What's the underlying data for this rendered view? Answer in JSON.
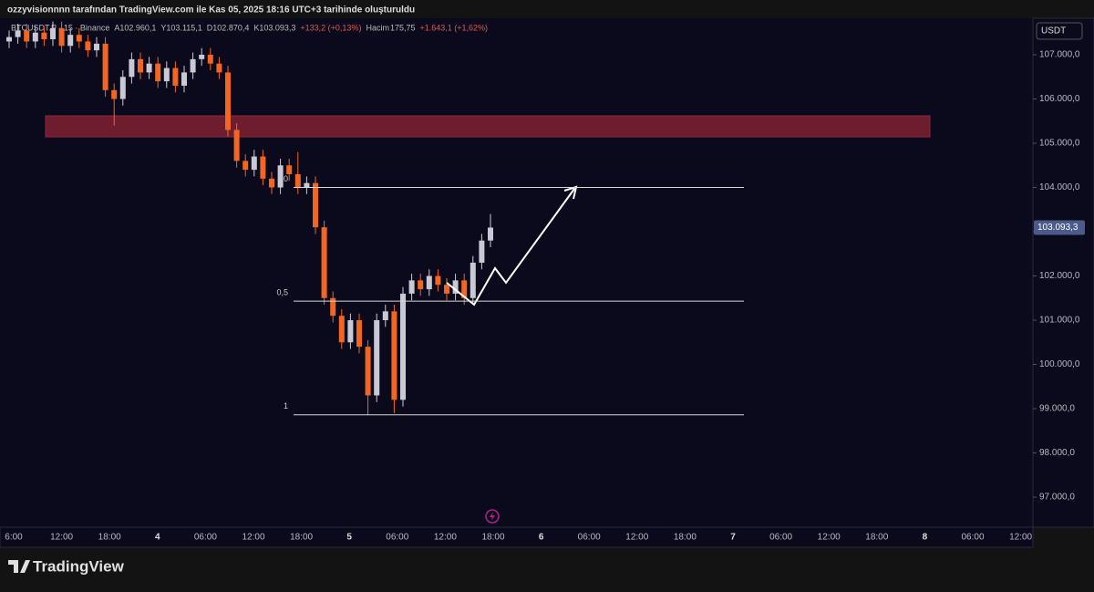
{
  "header": {
    "caption": "ozzyvisionnnn tarafından TradingView.com ile Kas 05, 2025 18:16 UTC+3 tarihinde oluşturuldu"
  },
  "footer": {
    "brand": "TradingView"
  },
  "chart_data": {
    "type": "candlestick",
    "legend": {
      "symbol": "BTCUSDT.P · 15 · Binance",
      "open": "A102.960,1",
      "high": "Y103.115,1",
      "low": "D102.870,4",
      "close": "K103.093,3",
      "change": "+133,2 (+0,13%)",
      "volume_name": "Hacim",
      "volume": "175,75",
      "volume_change": "+1.643,1 (+1,62%)"
    },
    "currency": "USDT",
    "ylim": [
      96320,
      107825
    ],
    "yticks": [
      {
        "value": 97000,
        "label": "97.000,0"
      },
      {
        "value": 98000,
        "label": "98.000,0"
      },
      {
        "value": 99000,
        "label": "99.000,0"
      },
      {
        "value": 100000,
        "label": "100.000,0"
      },
      {
        "value": 101000,
        "label": "101.000,0"
      },
      {
        "value": 102000,
        "label": "102.000,0"
      },
      {
        "value": 103000,
        "label": "103.000,0"
      },
      {
        "value": 104000,
        "label": "104.000,0"
      },
      {
        "value": 105000,
        "label": "105.000,0"
      },
      {
        "value": 106000,
        "label": "106.000,0"
      },
      {
        "value": 107000,
        "label": "107.000,0"
      }
    ],
    "x_labels": [
      "6:00",
      "12:00",
      "18:00",
      "4",
      "06:00",
      "12:00",
      "18:00",
      "5",
      "06:00",
      "12:00",
      "18:00",
      "6",
      "06:00",
      "12:00",
      "18:00",
      "7",
      "06:00",
      "12:00",
      "18:00",
      "8",
      "06:00",
      "12:00"
    ],
    "last_price": {
      "value": 103093.3,
      "label": "103.093,3"
    },
    "up_color": "#c9c9d6",
    "down_color": "#f26522",
    "zone": {
      "low": 105144,
      "high": 105619,
      "color": "#6e1d2e"
    },
    "fib_levels": [
      {
        "value": 104000,
        "label": "0"
      },
      {
        "value": 101430,
        "label": "0,5"
      },
      {
        "value": 98860,
        "label": "1"
      }
    ],
    "open": [
      107300,
      107400,
      107550,
      107300,
      107500,
      107350,
      107600,
      107200,
      107450,
      107300,
      107100,
      107250,
      106200,
      106000,
      106500,
      106900,
      106600,
      106800,
      106400,
      106700,
      106300,
      106600,
      106900,
      107000,
      106800,
      106600,
      105300,
      104600,
      104400,
      104700,
      104200,
      104000,
      104500,
      104300,
      104000,
      104100,
      103100,
      101500,
      101100,
      100500,
      101000,
      100400,
      99300,
      101000,
      101200,
      99200,
      101600,
      101900,
      101700,
      102000,
      101800,
      101600,
      101900,
      101500,
      102300,
      102800
    ],
    "high": [
      107550,
      107700,
      107700,
      107650,
      107650,
      107750,
      107750,
      107600,
      107600,
      107450,
      107400,
      107400,
      106350,
      106650,
      107050,
      107050,
      106950,
      106950,
      106850,
      106850,
      106750,
      107050,
      107150,
      107150,
      106950,
      106750,
      105450,
      104750,
      104850,
      104850,
      104350,
      104650,
      104650,
      104800,
      104250,
      104250,
      103250,
      101650,
      101250,
      101150,
      101150,
      100550,
      101150,
      101350,
      101350,
      101750,
      102050,
      102050,
      102150,
      102150,
      101950,
      102050,
      102050,
      102450,
      102950,
      103400
    ],
    "low": [
      107150,
      107250,
      107150,
      107150,
      107200,
      107200,
      107050,
      107050,
      107150,
      106950,
      106950,
      106050,
      105400,
      105850,
      106350,
      106450,
      106450,
      106250,
      106250,
      106150,
      106150,
      106450,
      106750,
      106650,
      106450,
      105150,
      104450,
      104250,
      104250,
      104050,
      103850,
      103850,
      104150,
      103850,
      103850,
      102950,
      101350,
      100950,
      100350,
      100350,
      100250,
      98850,
      99150,
      100850,
      98900,
      99050,
      101450,
      101550,
      101550,
      101650,
      101450,
      101450,
      101350,
      101350,
      102150,
      102650
    ],
    "close": [
      107400,
      107550,
      107300,
      107500,
      107350,
      107600,
      107200,
      107450,
      107300,
      107100,
      107250,
      106200,
      106000,
      106500,
      106900,
      106600,
      106800,
      106400,
      106700,
      106300,
      106600,
      106900,
      107000,
      106800,
      106600,
      105300,
      104600,
      104400,
      104700,
      104200,
      104000,
      104500,
      104300,
      104000,
      104100,
      103100,
      101500,
      101100,
      100500,
      101000,
      100400,
      99300,
      101000,
      101200,
      99200,
      101600,
      101900,
      101700,
      102000,
      101800,
      101600,
      101900,
      101500,
      102300,
      102800,
      103093.3
    ]
  }
}
